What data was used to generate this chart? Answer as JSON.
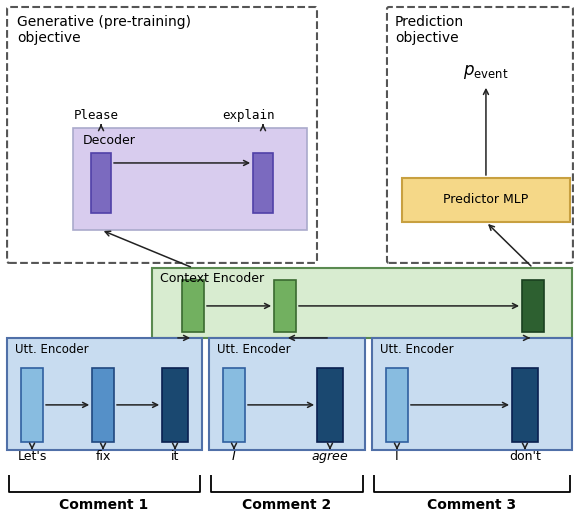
{
  "figsize": [
    5.8,
    5.16
  ],
  "dpi": 100,
  "colors": {
    "decoder_bg": "#d8ccee",
    "decoder_cell": "#7b6abf",
    "context_bg": "#d8ecd0",
    "context_cell_light": "#72b060",
    "context_cell_dark": "#2d6030",
    "utt_bg": "#c8dcf0",
    "utt_cell_light": "#88bce0",
    "utt_cell_mid": "#5590c8",
    "utt_cell_dark": "#1a4870",
    "predictor_bg": "#f5d888",
    "predictor_border": "#c8a040"
  },
  "labels": {
    "gen_title": "Generative (pre-training)\nobjective",
    "pred_title": "Prediction\nobjective",
    "decoder": "Decoder",
    "context": "Context Encoder",
    "utt": "Utt. Encoder",
    "predictor": "Predictor MLP",
    "p_event": "$p_\\mathrm{event}$",
    "please": "Please",
    "explain": "explain",
    "lets": "Let's",
    "fix": "fix",
    "it": "it",
    "I1": "$I$",
    "agree": "$agree$",
    "I2": "I",
    "dont": "don't",
    "comment1": "Comment 1",
    "comment2": "Comment 2",
    "comment3": "Comment 3"
  }
}
